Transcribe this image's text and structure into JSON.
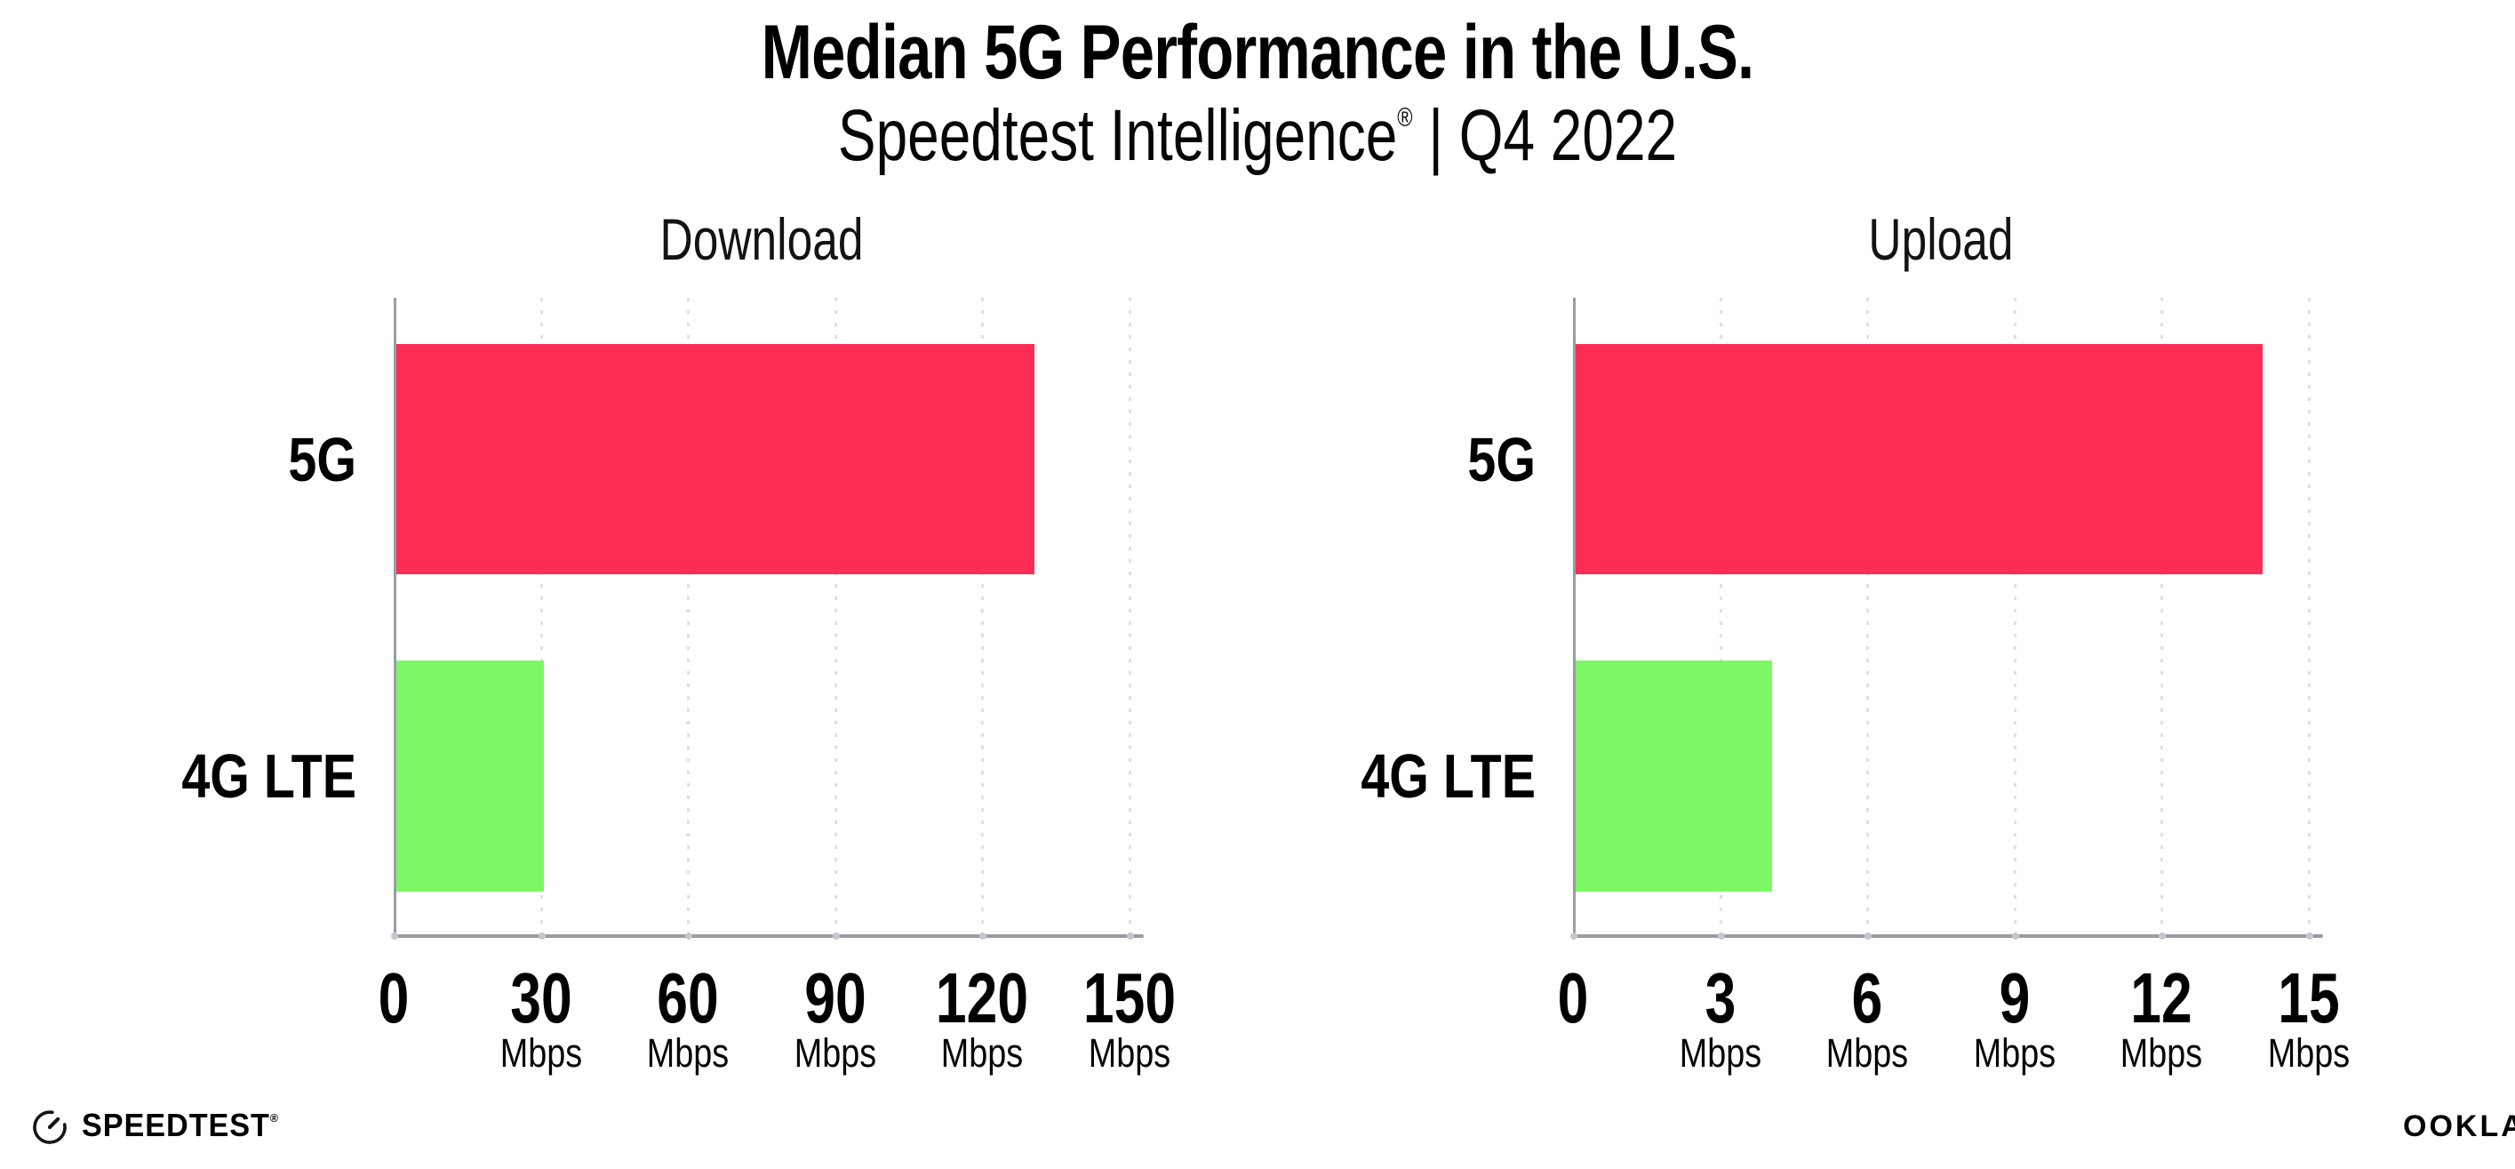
{
  "header": {
    "title": "Median 5G Performance in the U.S.",
    "subtitle_brand": "Speedtest Intelligence",
    "subtitle_reg": "®",
    "subtitle_rest": " | Q4 2022"
  },
  "footer": {
    "speedtest_label": "SPEEDTEST",
    "speedtest_reg": "®",
    "ookla_label": "OOKLA",
    "ookla_reg": "®"
  },
  "colors": {
    "bar_5g": "#FC2D55",
    "bar_4g_lte": "#7CF765",
    "axis": "#9b9ba2",
    "gridline": "#dfdfe9",
    "text": "#000000"
  },
  "chart_data": [
    {
      "type": "bar",
      "orientation": "horizontal",
      "title": "Download",
      "categories": [
        "5G",
        "4G LTE"
      ],
      "values": [
        130,
        30
      ],
      "unit": "Mbps",
      "xlabel": "",
      "ylabel": "",
      "xlim": [
        0,
        150
      ],
      "xticks": [
        0,
        30,
        60,
        90,
        120,
        150
      ],
      "bar_colors": [
        "#FC2D55",
        "#7CF765"
      ],
      "grid": "vertical-dotted",
      "legend": "none"
    },
    {
      "type": "bar",
      "orientation": "horizontal",
      "title": "Upload",
      "categories": [
        "5G",
        "4G LTE"
      ],
      "values": [
        14,
        4
      ],
      "unit": "Mbps",
      "xlabel": "",
      "ylabel": "",
      "xlim": [
        0,
        15
      ],
      "xticks": [
        0,
        3,
        6,
        9,
        12,
        15
      ],
      "bar_colors": [
        "#FC2D55",
        "#7CF765"
      ],
      "grid": "vertical-dotted",
      "legend": "none"
    }
  ]
}
